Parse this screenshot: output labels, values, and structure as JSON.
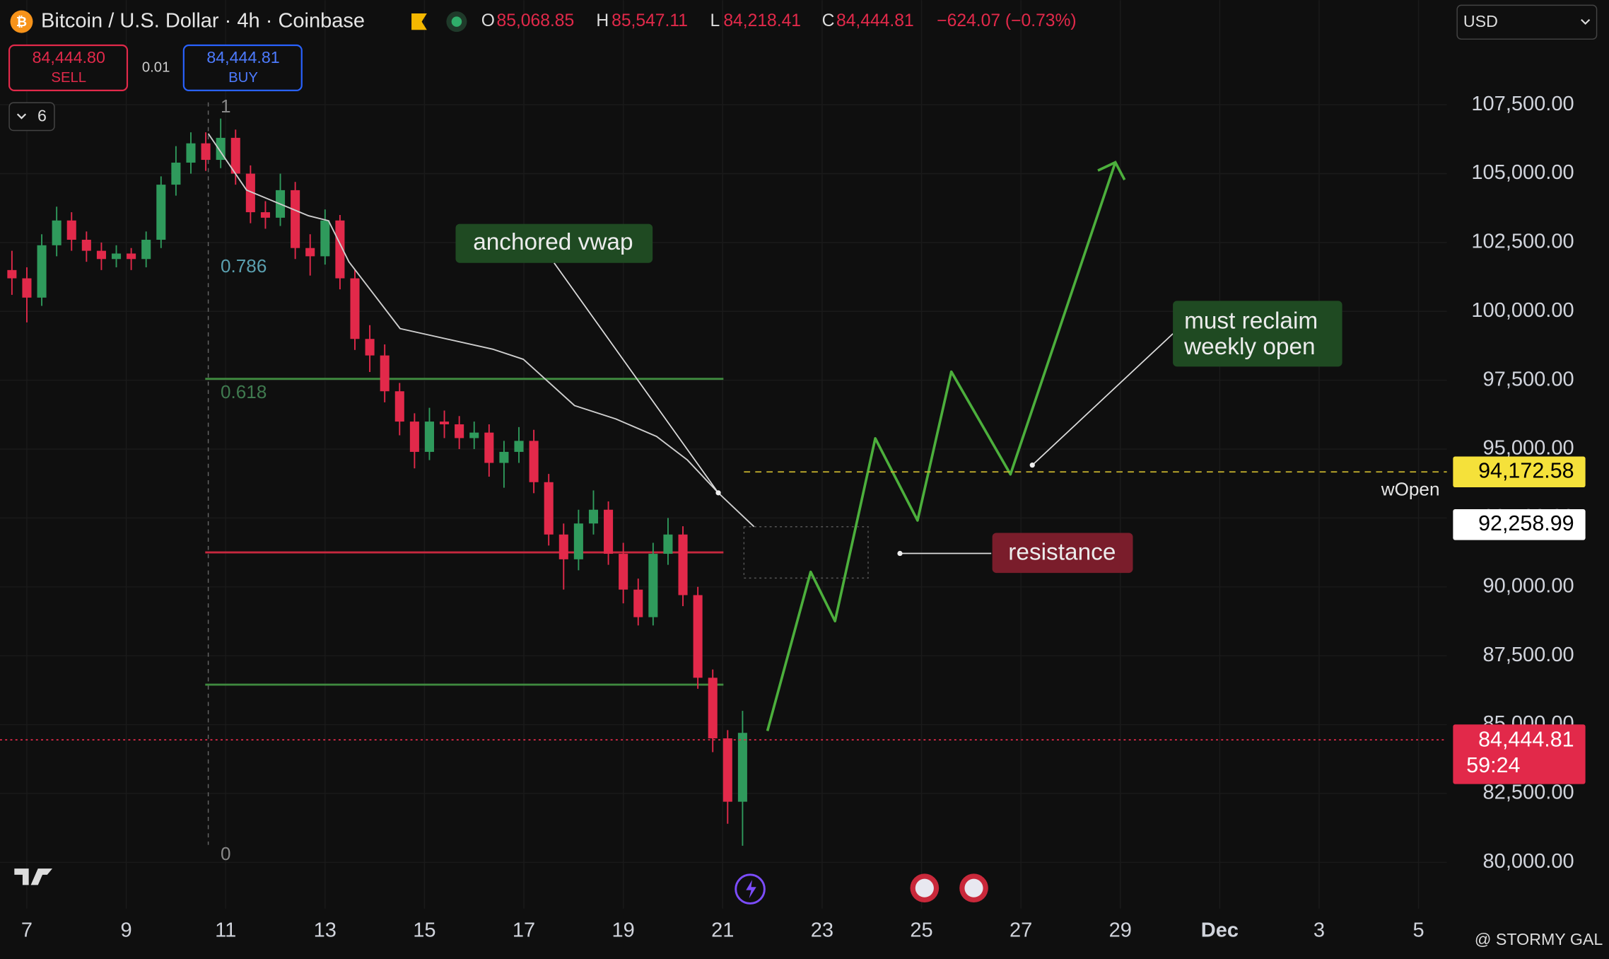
{
  "header": {
    "symbol": "Bitcoin / U.S. Dollar · 4h · Coinbase",
    "o_label": "O",
    "open": "85,068.85",
    "h_label": "H",
    "high": "85,547.11",
    "l_label": "L",
    "low": "84,218.41",
    "c_label": "C",
    "close": "84,444.81",
    "change": "−624.07 (−0.73%)",
    "currency": "USD"
  },
  "trade": {
    "sell_price": "84,444.80",
    "sell": "SELL",
    "size": "0.01",
    "buy_price": "84,444.81",
    "buy": "BUY",
    "indicators": "6"
  },
  "watermark": "@ STORMY GAL",
  "chart_data": {
    "type": "candlestick",
    "xlim": [
      6.46,
      35.57
    ],
    "xticks": [
      7,
      9,
      11,
      13,
      15,
      17,
      19,
      21,
      23,
      25,
      27,
      29,
      {
        "value": 31,
        "label": "Dec"
      },
      {
        "value": 33,
        "label": "3"
      },
      {
        "value": 35,
        "label": "5"
      }
    ],
    "ylim": [
      78320,
      111300
    ],
    "yticks": [
      {
        "value": 80000,
        "label": "80,000.00"
      },
      {
        "value": 82500,
        "label": "82,500.00"
      },
      {
        "value": 85000,
        "label": "85,000.00"
      },
      {
        "value": 87500,
        "label": "87,500.00"
      },
      {
        "value": 90000,
        "label": "90,000.00"
      },
      {
        "value": 92500,
        "label": "92,500.00"
      },
      {
        "value": 95000,
        "label": "95,000.00"
      },
      {
        "value": 97500,
        "label": "97,500.00"
      },
      {
        "value": 100000,
        "label": "100,000.00"
      },
      {
        "value": 102500,
        "label": "102,500.00"
      },
      {
        "value": 105000,
        "label": "105,000.00"
      },
      {
        "value": 107500,
        "label": "107,500.00"
      }
    ],
    "up_color": "#2f9a5c",
    "down_color": "#e2294a",
    "x": [
      6.7,
      7.0,
      7.3,
      7.6,
      7.9,
      8.2,
      8.5,
      8.8,
      9.1,
      9.4,
      9.7,
      10.0,
      10.3,
      10.6,
      10.9,
      11.2,
      11.5,
      11.8,
      12.1,
      12.4,
      12.7,
      13.0,
      13.3,
      13.6,
      13.9,
      14.2,
      14.5,
      14.8,
      15.1,
      15.4,
      15.7,
      16.0,
      16.3,
      16.6,
      16.9,
      17.2,
      17.5,
      17.8,
      18.1,
      18.4,
      18.7,
      19.0,
      19.3,
      19.6,
      19.9,
      20.2,
      20.5,
      20.8,
      21.1,
      21.4
    ],
    "open": [
      101500,
      101200,
      100500,
      102400,
      103300,
      102600,
      102200,
      101900,
      102100,
      101900,
      102600,
      104600,
      105400,
      106100,
      105500,
      106300,
      105000,
      103600,
      103400,
      104400,
      102300,
      102000,
      103300,
      101200,
      99000,
      98400,
      97100,
      96000,
      94900,
      96000,
      95900,
      95400,
      95600,
      94500,
      94900,
      95300,
      93800,
      91900,
      91000,
      92300,
      92800,
      91200,
      89900,
      88900,
      91200,
      91900,
      89700,
      86700,
      84500,
      82200
    ],
    "high": [
      102200,
      101600,
      102800,
      103800,
      103600,
      102900,
      102500,
      102400,
      102300,
      102900,
      104900,
      106000,
      106500,
      106500,
      107000,
      106600,
      105300,
      104000,
      105000,
      104700,
      102800,
      103700,
      103500,
      101500,
      99500,
      98800,
      97400,
      96300,
      96500,
      96400,
      96200,
      96000,
      95900,
      95300,
      95800,
      95700,
      94100,
      92300,
      92800,
      93500,
      93100,
      91600,
      90300,
      91600,
      92500,
      92200,
      90000,
      87000,
      84800,
      85500
    ],
    "low": [
      100600,
      99600,
      100200,
      102000,
      102200,
      101800,
      101500,
      101600,
      101500,
      101600,
      102300,
      104200,
      105000,
      105100,
      105200,
      104600,
      103200,
      103000,
      103100,
      101900,
      101300,
      101700,
      100800,
      98600,
      97800,
      96700,
      95500,
      94300,
      94600,
      95400,
      95000,
      95000,
      94000,
      93600,
      94500,
      93400,
      91500,
      89900,
      90600,
      91900,
      90800,
      89400,
      88600,
      88600,
      90800,
      89300,
      86300,
      84000,
      81400,
      80600
    ],
    "close": [
      101200,
      100500,
      102400,
      103300,
      102600,
      102200,
      101900,
      102100,
      101900,
      102600,
      104600,
      105400,
      106100,
      105500,
      106300,
      105000,
      103600,
      103400,
      104400,
      102300,
      102000,
      103300,
      101200,
      99000,
      98400,
      97100,
      96000,
      94900,
      96000,
      95900,
      95400,
      95600,
      94500,
      94900,
      95300,
      93800,
      91900,
      91000,
      92300,
      92800,
      91200,
      89900,
      88900,
      91200,
      91900,
      89700,
      86700,
      84500,
      82200,
      84700
    ],
    "vwap": {
      "color": "#cfcfcf",
      "x": [
        10.65,
        11.42,
        12.66,
        13.07,
        13.48,
        14.51,
        16.37,
        16.99,
        18.02,
        18.85,
        19.67,
        20.29,
        20.91,
        21.63
      ],
      "values": [
        106455,
        104405,
        103475,
        103290,
        101800,
        99375,
        98630,
        98260,
        96580,
        96095,
        95460,
        94605,
        93415,
        92185
      ],
      "label": "92,258.99",
      "label_value": 92258.99
    },
    "projection": {
      "color": "#4caf3c",
      "x": [
        21.9,
        22.77,
        23.26,
        24.07,
        24.92,
        25.6,
        26.79,
        28.9
      ],
      "values": [
        84770,
        90545,
        88756,
        95390,
        92410,
        97810,
        94085,
        105410
      ]
    },
    "levels": [
      {
        "value": 97550,
        "color": "#3f8a3f"
      },
      {
        "value": 91250,
        "color": "#c8283f"
      },
      {
        "value": 86450,
        "color": "#3f8a3f"
      }
    ],
    "fib": {
      "high": 107400,
      "low": 80260,
      "x": 10.65,
      "levels": [
        1,
        0.786,
        0.618,
        0
      ]
    },
    "weekly_open": {
      "value": 94172.58,
      "label": "94,172.58",
      "name": "wOpen",
      "color": "#f5e13a"
    },
    "last_price": {
      "value": 84444.81,
      "label": "84,444.81",
      "countdown": "59:24",
      "color": "#e2294a"
    },
    "annotations": [
      {
        "lines": [
          "anchored vwap"
        ],
        "color": "#1f4a22"
      },
      {
        "lines": [
          "must reclaim",
          "weekly open"
        ],
        "color": "#1f4a22"
      },
      {
        "lines": [
          "resistance"
        ],
        "color": "#7a1d2b"
      }
    ]
  }
}
